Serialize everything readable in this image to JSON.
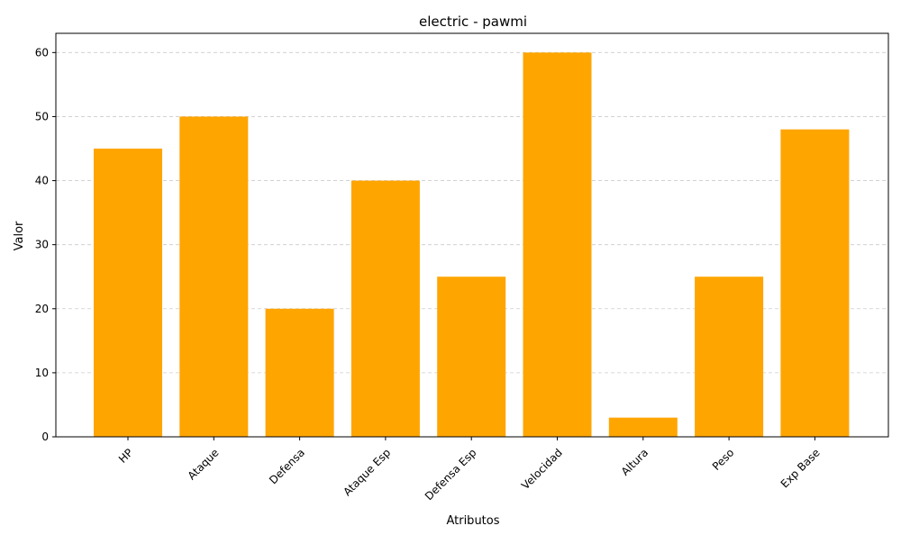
{
  "chart_data": {
    "type": "bar",
    "title": "electric - pawmi",
    "xlabel": "Atributos",
    "ylabel": "Valor",
    "categories": [
      "HP",
      "Ataque",
      "Defensa",
      "Ataque Esp",
      "Defensa Esp",
      "Velocidad",
      "Altura",
      "Peso",
      "Exp Base"
    ],
    "values": [
      45,
      50,
      20,
      40,
      25,
      60,
      3,
      25,
      48
    ],
    "ylim": [
      0,
      63
    ],
    "yticks": [
      0,
      10,
      20,
      30,
      40,
      50,
      60
    ],
    "grid": "y-dashed",
    "bar_color": "#FFA500",
    "grid_color": "#cccccc",
    "xtick_rotation": 45
  }
}
